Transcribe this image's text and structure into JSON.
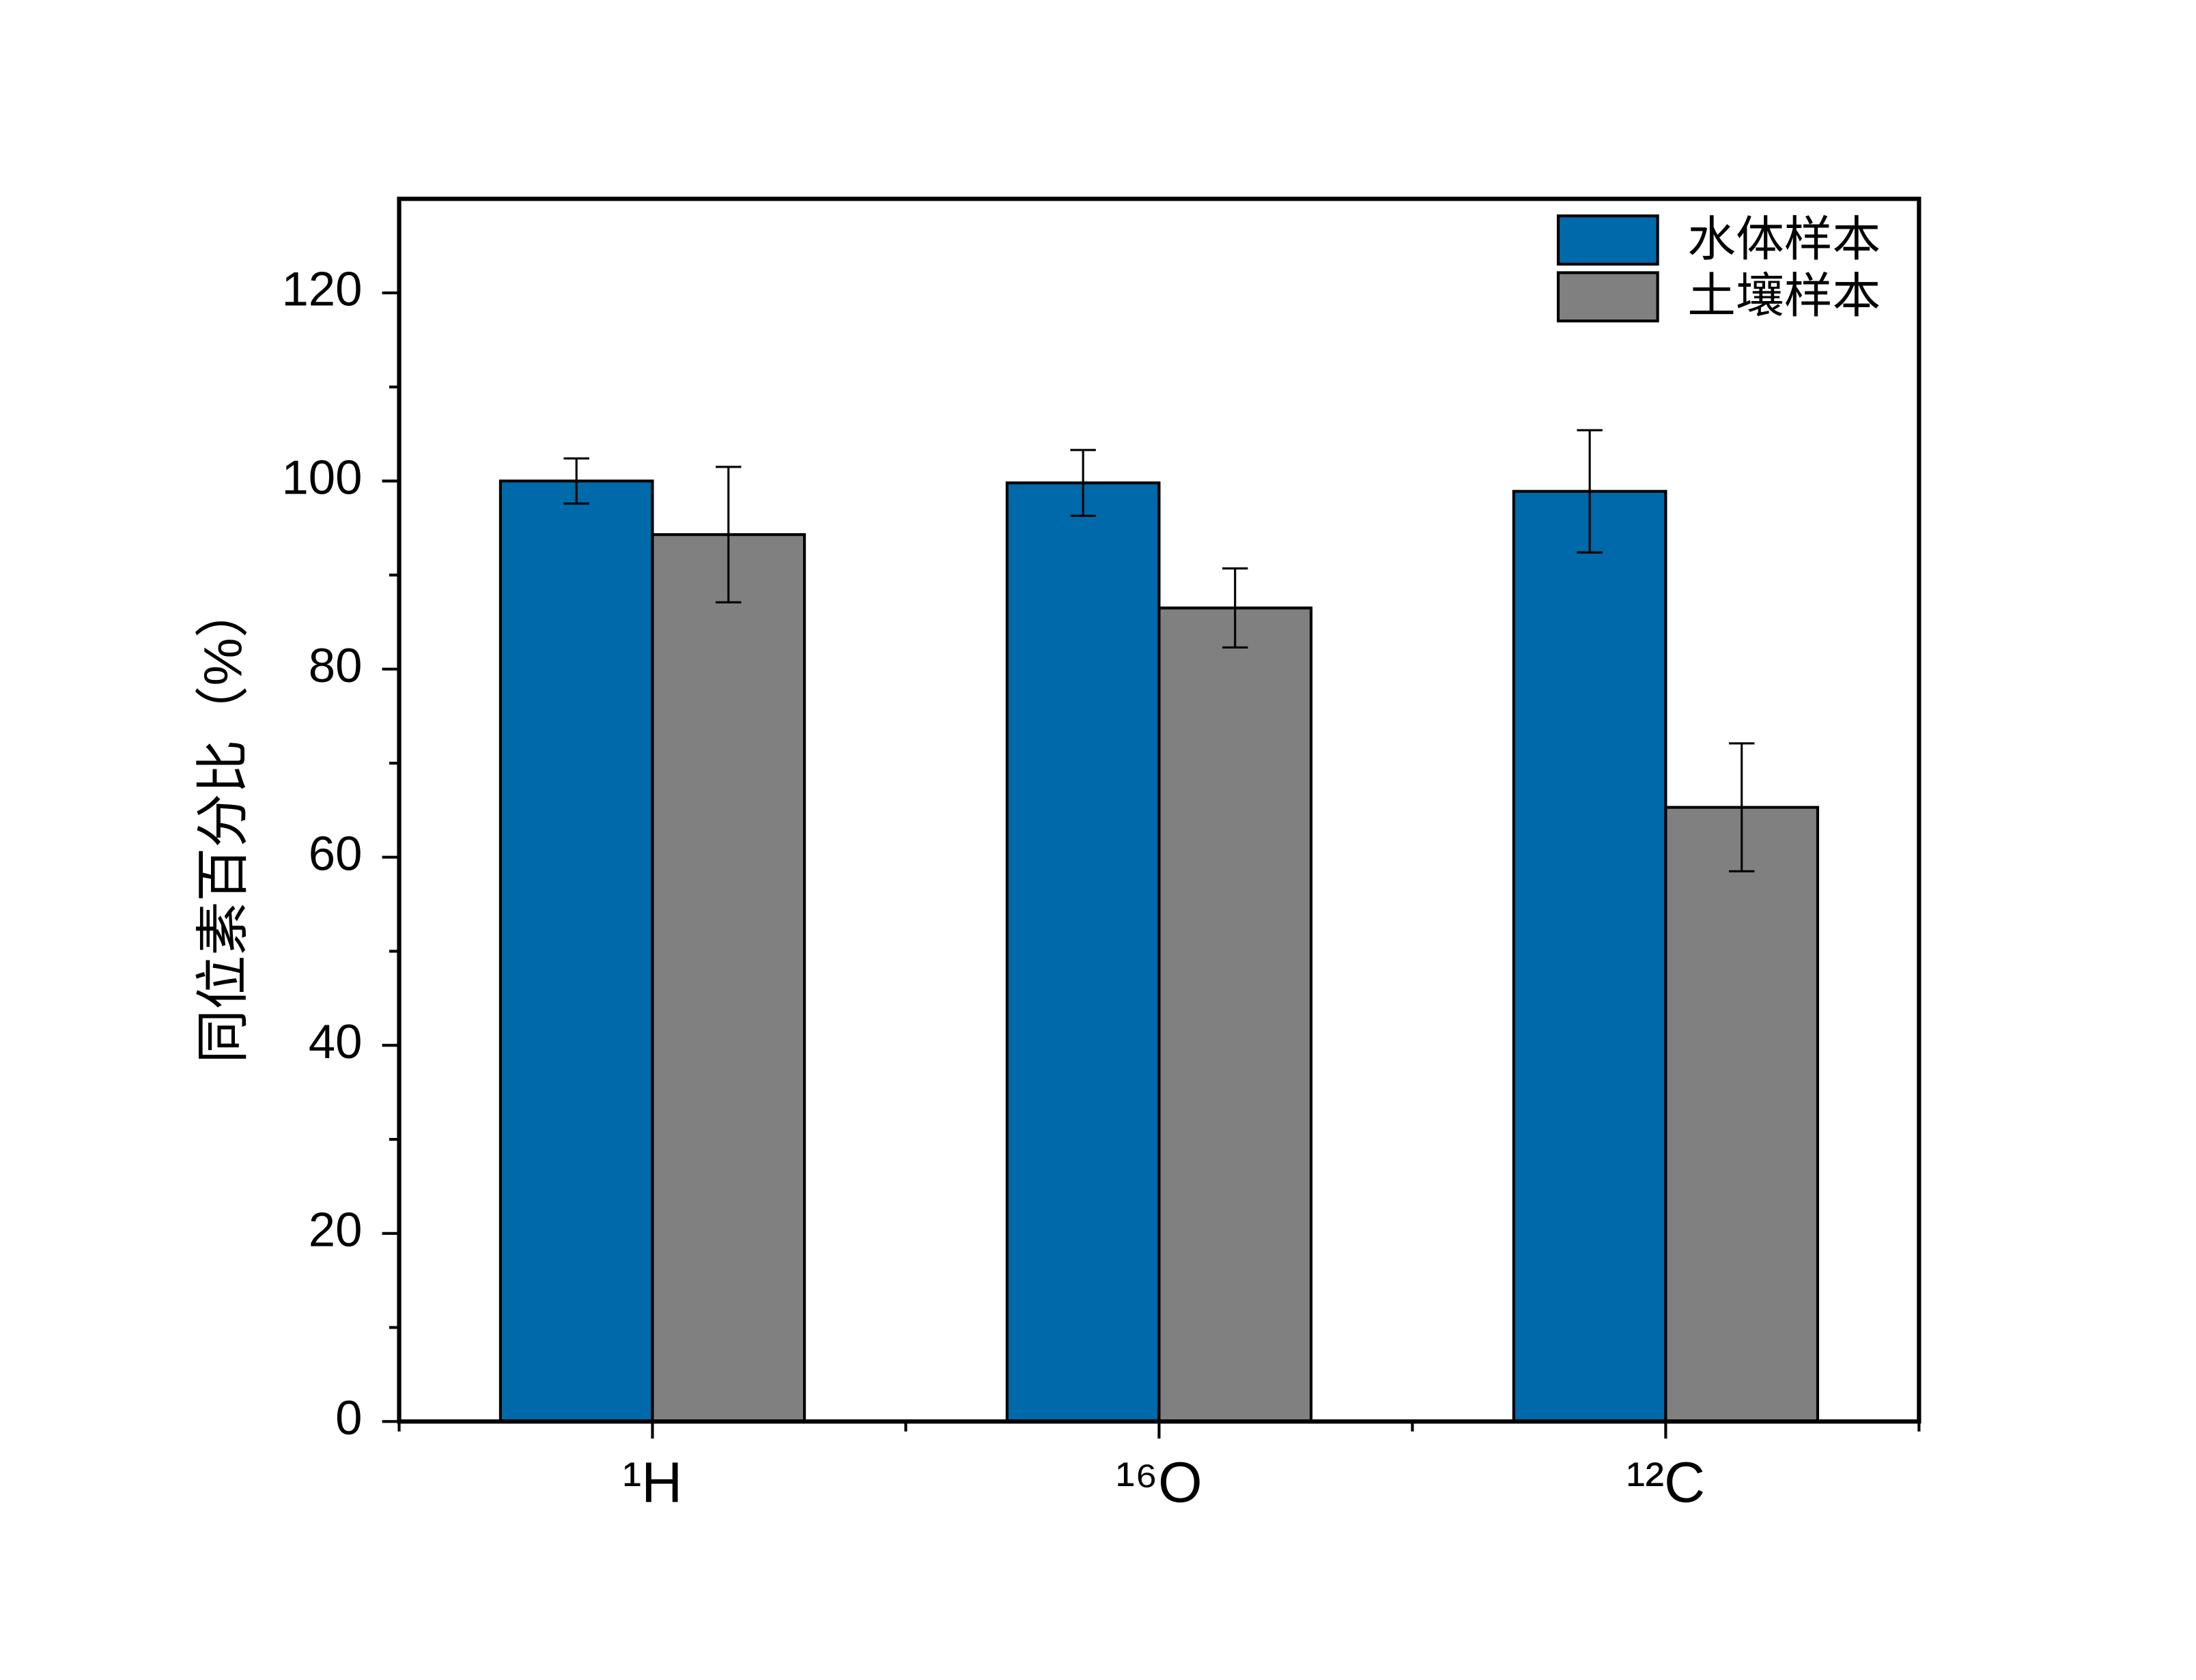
{
  "chart_data": {
    "type": "bar",
    "y_label": "同位素百分比（%）",
    "categories": [
      "¹H",
      "¹⁶O",
      "¹²C"
    ],
    "series": [
      {
        "name": "水体样本",
        "color": "#0069aa",
        "values": [
          100,
          99.8,
          98.9
        ],
        "errors": [
          2.4,
          3.5,
          6.5
        ]
      },
      {
        "name": "土壤样本",
        "color": "#808080",
        "values": [
          94.3,
          86.5,
          65.3
        ],
        "errors": [
          7.2,
          4.2,
          6.8
        ]
      }
    ],
    "ylim": [
      0,
      130
    ],
    "yticks": [
      0,
      20,
      40,
      60,
      80,
      100,
      120
    ],
    "legend": "upper right"
  }
}
